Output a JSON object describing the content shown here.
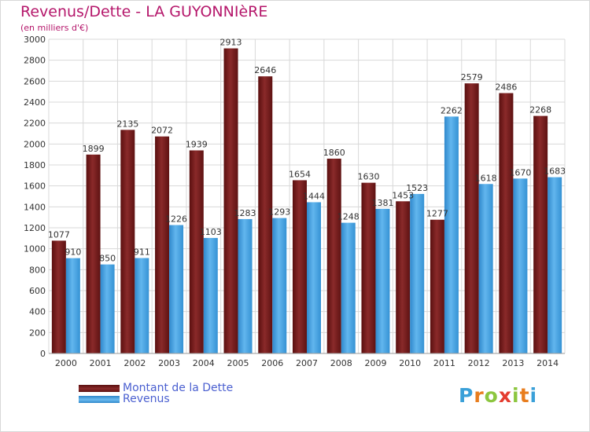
{
  "header": {
    "title": "Revenus/Dette - LA GUYONNIèRE",
    "subtitle": "(en milliers d'€)"
  },
  "colors": {
    "title": "#b5176b",
    "debt": "#7a1c1c",
    "revenue": "#4ea6e6",
    "legend_text": "#4a5fd0",
    "grid": "#d8d8d8"
  },
  "legend": {
    "items": [
      {
        "label": "Montant de la Dette",
        "color": "#7a1c1c"
      },
      {
        "label": "Revenus",
        "color": "#4ea6e6"
      }
    ]
  },
  "logo": {
    "text": "Proxiti",
    "letter_colors": [
      "#3aa0d8",
      "#e87d1e",
      "#8cc63f",
      "#e43c2f",
      "#8cc63f",
      "#e87d1e",
      "#3aa0d8"
    ]
  },
  "chart_data": {
    "type": "bar",
    "title": "Revenus/Dette - LA GUYONNIèRE",
    "ylabel": "(en milliers d'€)",
    "xlabel": "",
    "ylim": [
      0,
      3000
    ],
    "ytick_step": 200,
    "grid": true,
    "categories": [
      "2000",
      "2001",
      "2002",
      "2003",
      "2004",
      "2005",
      "2006",
      "2007",
      "2008",
      "2009",
      "2010",
      "2011",
      "2012",
      "2013",
      "2014"
    ],
    "series": [
      {
        "name": "Montant de la Dette",
        "values": [
          1077,
          1899,
          2135,
          2072,
          1939,
          2913,
          2646,
          1654,
          1860,
          1630,
          1453,
          1277,
          2579,
          2486,
          2268
        ]
      },
      {
        "name": "Revenus",
        "values": [
          910,
          850,
          911,
          1226,
          1103,
          1283,
          1293,
          1444,
          1248,
          1381,
          1523,
          2262,
          1618,
          1670,
          1683
        ]
      }
    ]
  }
}
